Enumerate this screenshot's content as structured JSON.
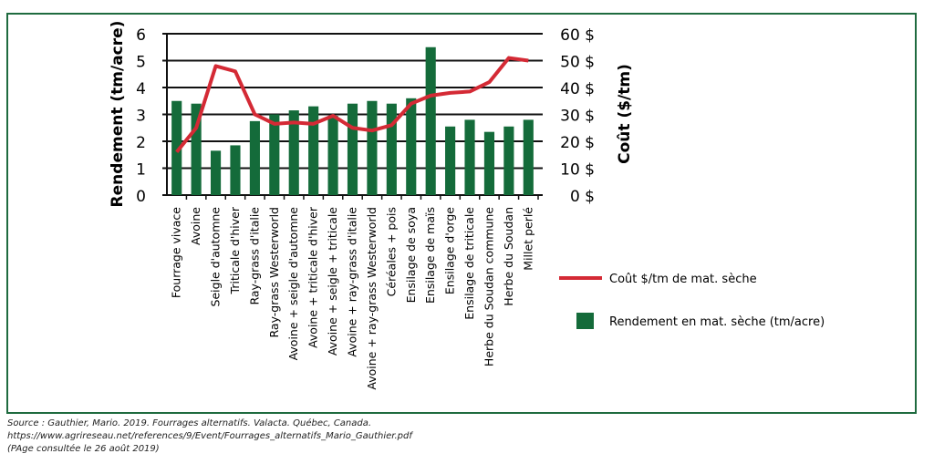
{
  "chart_data": {
    "type": "bar+line",
    "categories": [
      "Fourrage vivace",
      "Avoine",
      "Seigle d'automne",
      "Triticale d'hiver",
      "Ray-grass d'italie",
      "Ray-grass Westerworld",
      "Avoine + seigle d'automne",
      "Avoine + triticale d'hiver",
      "Avoine + seigle + triticale",
      "Avoine + ray-grass d'italie",
      "Avoine + ray-grass Westerworld",
      "Céréales + pois",
      "Ensilage de soya",
      "Ensilage de maïs",
      "Ensilage d'orge",
      "Ensilage de triticale",
      "Herbe du Soudan commune",
      "Herbe du Soudan",
      "Millet perlé"
    ],
    "series": [
      {
        "name": "Rendement en mat. sèche (tm/acre)",
        "type": "bar",
        "axis": "left",
        "color": "#146b3a",
        "values": [
          3.5,
          3.4,
          1.65,
          1.85,
          2.75,
          3.0,
          3.15,
          3.3,
          2.95,
          3.4,
          3.5,
          3.4,
          3.6,
          5.5,
          2.55,
          2.8,
          2.35,
          2.55,
          2.8
        ]
      },
      {
        "name": "Coût $/tm de mat. sèche",
        "type": "line",
        "axis": "right",
        "color": "#d42a35",
        "values": [
          16,
          25,
          48,
          46,
          30,
          26.5,
          27,
          26.5,
          29.5,
          25,
          24,
          26,
          34,
          37,
          38,
          38.5,
          42,
          51,
          50
        ]
      }
    ],
    "ylabel": "Rendement (tm/acre)",
    "ylabel_right": "Coût ($/tm)",
    "ylim": [
      0,
      6
    ],
    "ylim_right": [
      0,
      60
    ],
    "yticks": [
      "0",
      "1",
      "2",
      "3",
      "4",
      "5",
      "6"
    ],
    "yticks_right": [
      "0 $",
      "10 $",
      "20 $",
      "30 $",
      "40 $",
      "50 $",
      "60 $"
    ],
    "grid": true,
    "legend_position": "right"
  },
  "source": {
    "line1": "Source : Gauthier, Mario. 2019. Fourrages alternatifs. Valacta. Québec, Canada.",
    "line2": "https://www.agrireseau.net/references/9/Event/Fourrages_alternatifs_Mario_Gauthier.pdf",
    "line3": "(PAge consultée le 26 août 2019)"
  }
}
